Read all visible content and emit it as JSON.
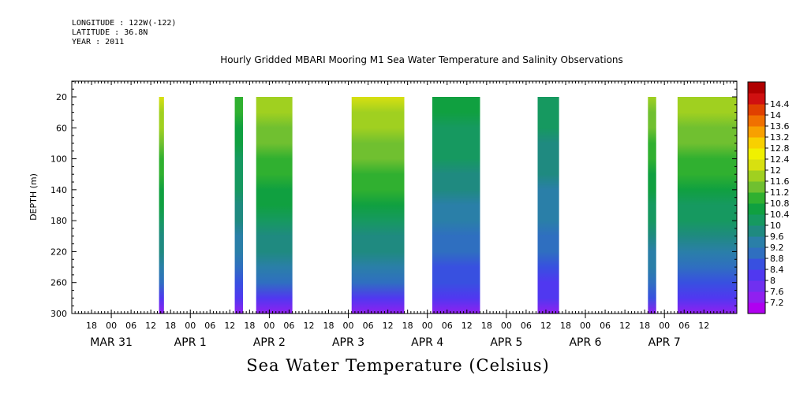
{
  "header": {
    "longitude": "LONGITUDE : 122W(-122)",
    "latitude": "LATITUDE : 36.8N",
    "year": "YEAR : 2011"
  },
  "title": "Hourly Gridded MBARI Mooring M1 Sea Water Temperature and Salinity Observations",
  "footer_title": "Sea Water Temperature (Celsius)",
  "chart_data": {
    "type": "heatmap",
    "title": "Hourly Gridded MBARI Mooring M1 Sea Water Temperature and Salinity Observations",
    "xlabel": "",
    "ylabel": "DEPTH (m)",
    "colorbar_label": "Sea Water Temperature (Celsius)",
    "ylim": [
      300,
      0
    ],
    "y_axis_inverted": true,
    "y_ticks": [
      20,
      60,
      100,
      140,
      180,
      220,
      260,
      300
    ],
    "x_range_hours": [
      "2011-03-31 12:00",
      "2011-04-07 22:00"
    ],
    "x_tick_hours": [
      "18",
      "00",
      "06",
      "12",
      "18",
      "00",
      "06",
      "12",
      "18",
      "00",
      "06",
      "12",
      "18",
      "00",
      "06",
      "12",
      "18",
      "00",
      "06",
      "12",
      "18",
      "00",
      "06",
      "12",
      "18",
      "00",
      "06",
      "12",
      "18",
      "00",
      "06",
      "12"
    ],
    "x_tick_hour_values": [
      18,
      24,
      30,
      36,
      42,
      48,
      54,
      60,
      66,
      72,
      78,
      84,
      90,
      96,
      102,
      108,
      114,
      120,
      126,
      132,
      138,
      144,
      150,
      156,
      162,
      168,
      174,
      180,
      186,
      192,
      198,
      204
    ],
    "date_labels": [
      "MAR 31",
      "APR  1",
      "APR  2",
      "APR  3",
      "APR  4",
      "APR  5",
      "APR  6",
      "APR  7"
    ],
    "date_label_hour_values": [
      24,
      48,
      72,
      96,
      120,
      144,
      168,
      192
    ],
    "x_start_hour": 12,
    "x_end_hour": 214,
    "colorbar": {
      "levels": [
        7.2,
        7.6,
        8,
        8.4,
        8.8,
        9.2,
        9.6,
        10,
        10.4,
        10.8,
        11.2,
        11.6,
        12,
        12.4,
        12.8,
        13.2,
        13.6,
        14,
        14.4
      ],
      "colors": [
        "#b000f0",
        "#9020f0",
        "#7030f0",
        "#5038f0",
        "#3850e0",
        "#2f6fc0",
        "#2a7fa8",
        "#1f8a80",
        "#169960",
        "#10a040",
        "#30b030",
        "#70c030",
        "#a0d020",
        "#d8e010",
        "#f0f000",
        "#f8d000",
        "#f8a000",
        "#f07000",
        "#e04000",
        "#d01010",
        "#b00000"
      ]
    },
    "data_segments": [
      {
        "start_hour": 38.5,
        "end_hour": 40.0,
        "surface_temp": 12.0,
        "bottom_temp": 7.2
      },
      {
        "start_hour": 61.5,
        "end_hour": 64.0,
        "surface_temp": 11.0,
        "bottom_temp": 7.4
      },
      {
        "start_hour": 68.0,
        "end_hour": 79.0,
        "surface_temp": 11.9,
        "bottom_temp": 7.3
      },
      {
        "start_hour": 97.0,
        "end_hour": 113.0,
        "surface_temp": 12.1,
        "bottom_temp": 7.2
      },
      {
        "start_hour": 121.5,
        "end_hour": 136.0,
        "surface_temp": 10.6,
        "bottom_temp": 7.3
      },
      {
        "start_hour": 153.5,
        "end_hour": 160.0,
        "surface_temp": 10.3,
        "bottom_temp": 7.4
      },
      {
        "start_hour": 187.0,
        "end_hour": 189.5,
        "surface_temp": 11.6,
        "bottom_temp": 7.5
      },
      {
        "start_hour": 196.0,
        "end_hour": 235.5,
        "surface_temp": 11.8,
        "bottom_temp": 7.2
      }
    ],
    "grid": false,
    "legend_placement": "right colorbar"
  }
}
